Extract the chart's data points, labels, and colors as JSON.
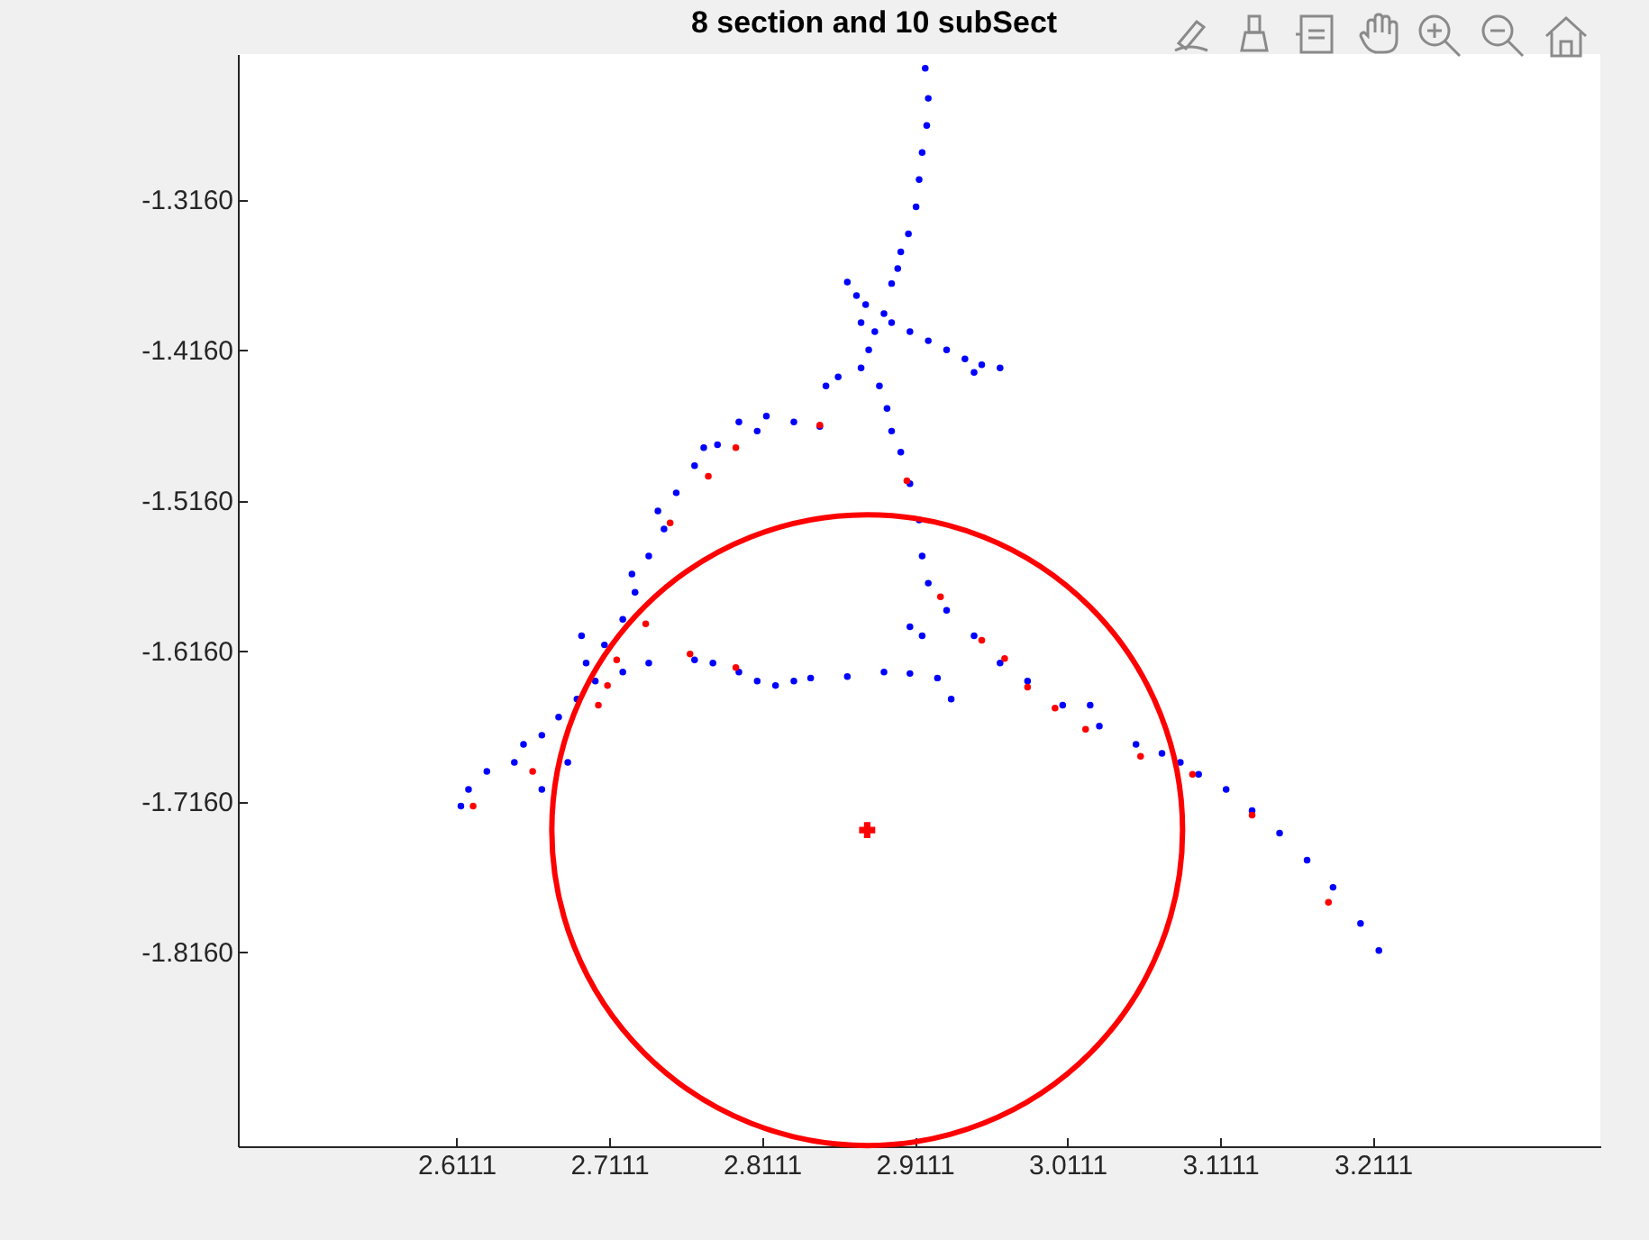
{
  "chart_data": {
    "type": "scatter",
    "title": "8 section and 10 subSect",
    "xlim": [
      2.468,
      3.36
    ],
    "ylim": [
      -1.945,
      -1.2196
    ],
    "xticks": [
      2.6111,
      2.7111,
      2.8111,
      2.9111,
      3.0111,
      3.1111,
      3.2111
    ],
    "yticks": [
      {
        "value": -1.816,
        "label": "-1.8160"
      },
      {
        "value": -1.716,
        "label": "-1.7160"
      },
      {
        "value": -1.616,
        "label": "-1.6160"
      },
      {
        "value": -1.516,
        "label": "-1.5160"
      },
      {
        "value": -1.416,
        "label": "-1.4160"
      },
      {
        "value": -1.316,
        "label": "-1.3160"
      }
    ],
    "series": [
      {
        "type": "scatter",
        "color": "#0000ff",
        "marker": "circle",
        "x": [
          2.918,
          2.92,
          2.919,
          2.916,
          2.914,
          2.912,
          2.907,
          2.902,
          2.9,
          2.896,
          2.867,
          2.873,
          2.879,
          2.891,
          2.885,
          2.876,
          2.896,
          2.908,
          2.92,
          2.932,
          2.944,
          2.955,
          2.967,
          2.95,
          2.881,
          2.876,
          2.861,
          2.853,
          2.888,
          2.893,
          2.896,
          2.902,
          2.908,
          2.914,
          2.916,
          2.92,
          2.932,
          2.95,
          2.967,
          2.985,
          3.008,
          3.032,
          3.056,
          3.073,
          3.085,
          3.097,
          3.115,
          3.132,
          3.15,
          3.168,
          3.185,
          3.203,
          3.215,
          2.849,
          2.832,
          2.814,
          2.796,
          2.782,
          2.767,
          2.755,
          2.747,
          2.737,
          2.728,
          2.72,
          2.708,
          2.696,
          2.702,
          2.69,
          2.678,
          2.667,
          2.655,
          2.649,
          2.631,
          2.619,
          2.614,
          2.667,
          2.684,
          2.72,
          2.737,
          2.693,
          2.726,
          2.743,
          2.773,
          2.808,
          2.767,
          2.779,
          2.796,
          2.808,
          2.82,
          2.832,
          2.843,
          2.867,
          2.891,
          2.908,
          2.926,
          2.935,
          2.908,
          2.916,
          3.026
        ],
        "values": [
          -1.229,
          -1.249,
          -1.267,
          -1.285,
          -1.303,
          -1.321,
          -1.339,
          -1.351,
          -1.362,
          -1.372,
          -1.371,
          -1.38,
          -1.386,
          -1.392,
          -1.404,
          -1.398,
          -1.398,
          -1.404,
          -1.41,
          -1.416,
          -1.422,
          -1.426,
          -1.428,
          -1.431,
          -1.416,
          -1.428,
          -1.434,
          -1.44,
          -1.44,
          -1.455,
          -1.47,
          -1.484,
          -1.505,
          -1.529,
          -1.553,
          -1.571,
          -1.589,
          -1.606,
          -1.624,
          -1.636,
          -1.652,
          -1.666,
          -1.678,
          -1.684,
          -1.69,
          -1.698,
          -1.708,
          -1.722,
          -1.737,
          -1.755,
          -1.773,
          -1.797,
          -1.815,
          -1.467,
          -1.464,
          -1.46,
          -1.464,
          -1.479,
          -1.493,
          -1.511,
          -1.535,
          -1.553,
          -1.577,
          -1.595,
          -1.612,
          -1.624,
          -1.636,
          -1.648,
          -1.66,
          -1.672,
          -1.678,
          -1.69,
          -1.696,
          -1.708,
          -1.719,
          -1.708,
          -1.69,
          -1.63,
          -1.624,
          -1.606,
          -1.565,
          -1.523,
          -1.481,
          -1.47,
          -1.622,
          -1.624,
          -1.63,
          -1.636,
          -1.639,
          -1.636,
          -1.634,
          -1.633,
          -1.63,
          -1.631,
          -1.634,
          -1.648,
          -1.6,
          -1.606,
          -1.652
        ]
      },
      {
        "type": "scatter",
        "color": "#ff0000",
        "marker": "circle",
        "x": [
          2.849,
          2.794,
          2.776,
          2.906,
          2.751,
          2.735,
          2.716,
          2.71,
          2.704,
          2.661,
          2.622,
          2.764,
          2.794,
          2.928,
          2.955,
          2.97,
          2.985,
          3.003,
          3.023,
          3.059,
          3.093,
          3.132,
          3.182
        ],
        "values": [
          -1.466,
          -1.481,
          -1.5,
          -1.503,
          -1.531,
          -1.598,
          -1.622,
          -1.639,
          -1.652,
          -1.696,
          -1.719,
          -1.618,
          -1.627,
          -1.58,
          -1.609,
          -1.621,
          -1.64,
          -1.654,
          -1.668,
          -1.686,
          -1.698,
          -1.725,
          -1.783
        ]
      },
      {
        "type": "scatter",
        "color": "#ff0000",
        "x": [
          2.88
        ],
        "values": [
          -1.735
        ]
      }
    ]
  }
}
